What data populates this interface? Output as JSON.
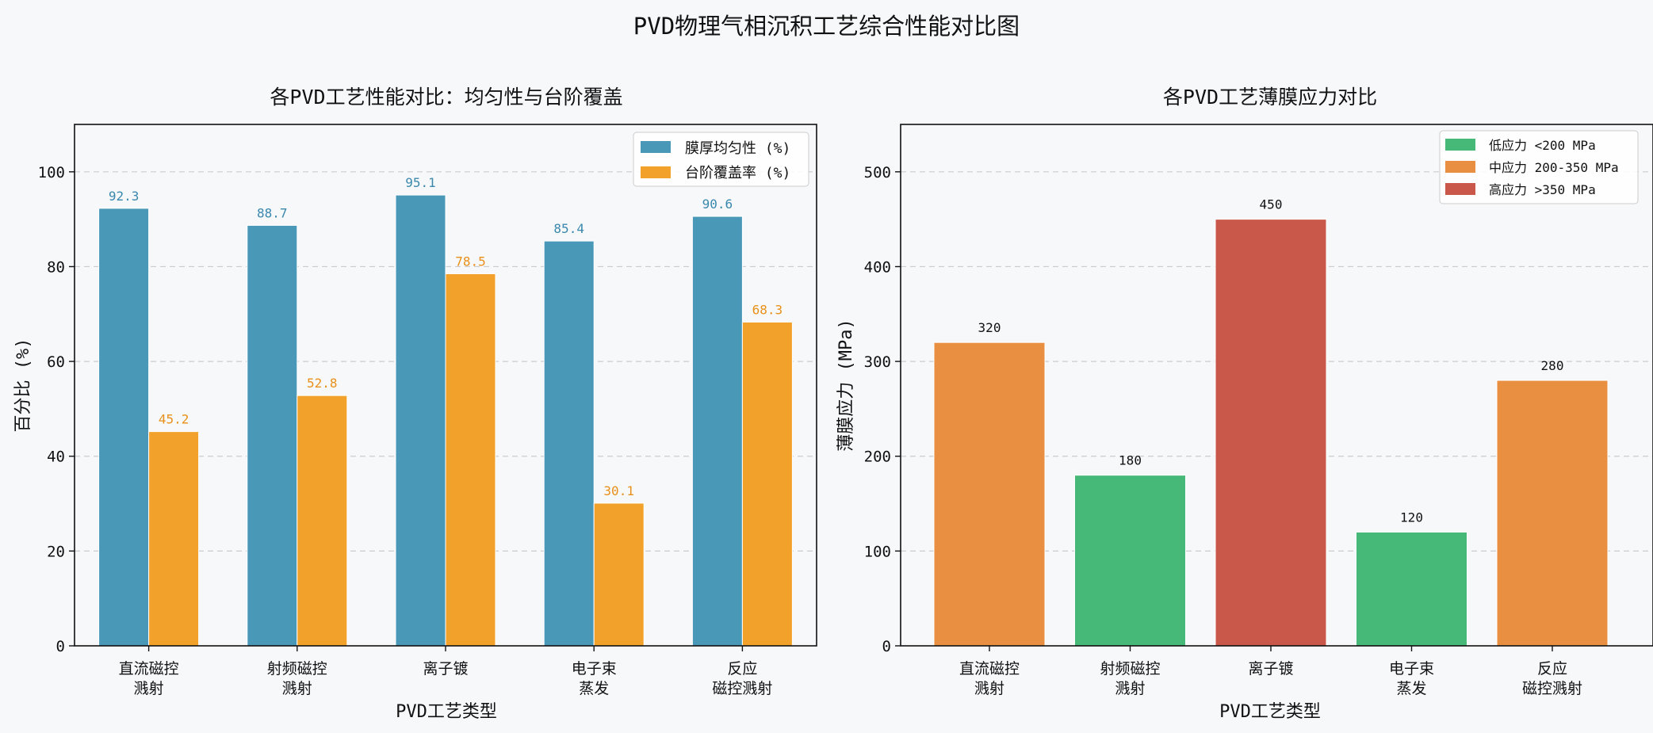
{
  "figure": {
    "title": "PVD物理气相沉积工艺综合性能对比图"
  },
  "colors": {
    "uniformity": "#4a98b8",
    "step_coverage": "#f2a12b",
    "low": "#46b978",
    "mid": "#e98f42",
    "high": "#c9584b",
    "grid": "#cccccc",
    "background": "#f7f8fa"
  },
  "chart_data": [
    {
      "type": "bar",
      "title": "各PVD工艺性能对比：均匀性与台阶覆盖",
      "xlabel": "PVD工艺类型",
      "ylabel": "百分比 (%)",
      "ylim": [
        0,
        110
      ],
      "yticks": [
        0,
        20,
        40,
        60,
        80,
        100
      ],
      "categories": [
        [
          "直流磁控",
          "溅射"
        ],
        [
          "射频磁控",
          "溅射"
        ],
        [
          "离子镀"
        ],
        [
          "电子束",
          "蒸发"
        ],
        [
          "反应",
          "磁控溅射"
        ]
      ],
      "series": [
        {
          "name": "膜厚均匀性 (%)",
          "values": [
            92.3,
            88.7,
            95.1,
            85.4,
            90.6
          ],
          "labels": [
            "92.3",
            "88.7",
            "95.1",
            "85.4",
            "90.6"
          ]
        },
        {
          "name": "台阶覆盖率 (%)",
          "values": [
            45.2,
            52.8,
            78.5,
            30.1,
            68.3
          ],
          "labels": [
            "45.2",
            "52.8",
            "78.5",
            "30.1",
            "68.3"
          ]
        }
      ],
      "legend_position": "top-right",
      "grid": "y-dashed"
    },
    {
      "type": "bar",
      "title": "各PVD工艺薄膜应力对比",
      "xlabel": "PVD工艺类型",
      "ylabel": "薄膜应力 (MPa)",
      "ylim": [
        0,
        550
      ],
      "yticks": [
        0,
        100,
        200,
        300,
        400,
        500
      ],
      "categories": [
        [
          "直流磁控",
          "溅射"
        ],
        [
          "射频磁控",
          "溅射"
        ],
        [
          "离子镀"
        ],
        [
          "电子束",
          "蒸发"
        ],
        [
          "反应",
          "磁控溅射"
        ]
      ],
      "values": [
        320,
        180,
        450,
        120,
        280
      ],
      "labels": [
        "320",
        "180",
        "450",
        "120",
        "280"
      ],
      "value_class": [
        "mid",
        "low",
        "high",
        "low",
        "mid"
      ],
      "legend": [
        {
          "key": "low",
          "label": "低应力 <200 MPa"
        },
        {
          "key": "mid",
          "label": "中应力 200-350 MPa"
        },
        {
          "key": "high",
          "label": "高应力 >350 MPa"
        }
      ],
      "legend_position": "top-right",
      "grid": "y-dashed"
    }
  ]
}
